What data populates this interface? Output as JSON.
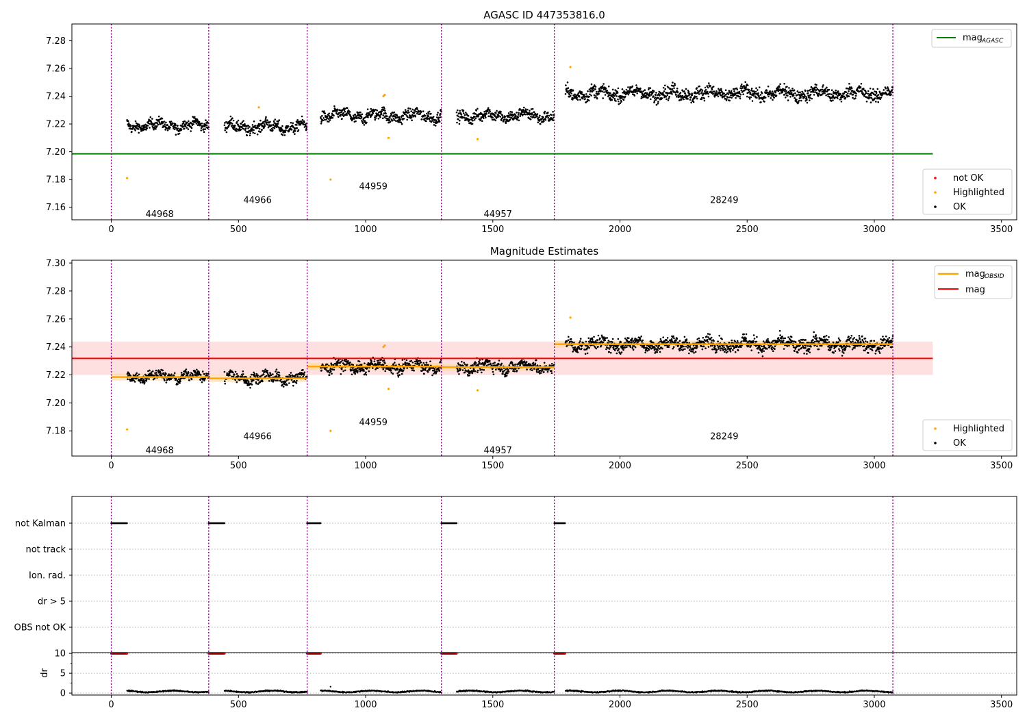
{
  "chart_data": [
    {
      "type": "scatter",
      "title": "AGASC ID 447353816.0",
      "xlabel": "",
      "ylabel": "",
      "xlim": [
        -155,
        3560
      ],
      "ylim": [
        7.151,
        7.292
      ],
      "x_ticks": [
        0,
        500,
        1000,
        1500,
        2000,
        2500,
        3000,
        3500
      ],
      "y_ticks": [
        7.16,
        7.18,
        7.2,
        7.22,
        7.24,
        7.26,
        7.28
      ],
      "observation_boundaries": [
        0,
        383,
        770,
        1298,
        1742,
        3073
      ],
      "obsid_labels": [
        {
          "text": "44968",
          "x": 190,
          "y": 7.155
        },
        {
          "text": "44966",
          "x": 575,
          "y": 7.165
        },
        {
          "text": "44959",
          "x": 1030,
          "y": 7.175
        },
        {
          "text": "44957",
          "x": 1520,
          "y": 7.155
        },
        {
          "text": "28249",
          "x": 2410,
          "y": 7.165
        }
      ],
      "segments": [
        {
          "x_start": 62,
          "x_end": 383,
          "mean": 7.219,
          "spread": 0.006
        },
        {
          "x_start": 445,
          "x_end": 770,
          "mean": 7.218,
          "spread": 0.007
        },
        {
          "x_start": 823,
          "x_end": 1298,
          "mean": 7.226,
          "spread": 0.007
        },
        {
          "x_start": 1358,
          "x_end": 1742,
          "mean": 7.226,
          "spread": 0.007
        },
        {
          "x_start": 1786,
          "x_end": 3073,
          "mean": 7.242,
          "spread": 0.008
        }
      ],
      "highlighted_points": [
        {
          "x": 62,
          "y": 7.181
        },
        {
          "x": 580,
          "y": 7.232
        },
        {
          "x": 862,
          "y": 7.18
        },
        {
          "x": 1070,
          "y": 7.24
        },
        {
          "x": 1075,
          "y": 7.241
        },
        {
          "x": 1090,
          "y": 7.21
        },
        {
          "x": 1440,
          "y": 7.209
        },
        {
          "x": 1805,
          "y": 7.261
        }
      ],
      "horizontal_lines": [
        {
          "name": "mag_AGASC",
          "y": 7.1985,
          "x_start": -155,
          "x_end": 3230,
          "color": "#008000"
        }
      ],
      "legends": [
        {
          "placement": "upper right",
          "entries": [
            {
              "name": "mag",
              "subscript": "AGASC",
              "color": "#008000",
              "kind": "line"
            }
          ]
        },
        {
          "placement": "lower right",
          "entries": [
            {
              "name": "not OK",
              "color": "#ff0000",
              "kind": "dot"
            },
            {
              "name": "Highlighted",
              "color": "#ffa500",
              "kind": "dot"
            },
            {
              "name": "OK",
              "color": "#000000",
              "kind": "dot"
            }
          ]
        }
      ]
    },
    {
      "type": "scatter",
      "title": "Magnitude Estimates",
      "xlabel": "",
      "ylabel": "",
      "xlim": [
        -155,
        3560
      ],
      "ylim": [
        7.162,
        7.302
      ],
      "x_ticks": [
        0,
        500,
        1000,
        1500,
        2000,
        2500,
        3000,
        3500
      ],
      "y_ticks": [
        7.18,
        7.2,
        7.22,
        7.24,
        7.26,
        7.28,
        7.3
      ],
      "observation_boundaries": [
        0,
        383,
        770,
        1298,
        1742,
        3073
      ],
      "obsid_labels": [
        {
          "text": "44968",
          "x": 190,
          "y": 7.166
        },
        {
          "text": "44966",
          "x": 575,
          "y": 7.176
        },
        {
          "text": "44959",
          "x": 1030,
          "y": 7.186
        },
        {
          "text": "44957",
          "x": 1520,
          "y": 7.166
        },
        {
          "text": "28249",
          "x": 2410,
          "y": 7.176
        }
      ],
      "segments": [
        {
          "x_start": 62,
          "x_end": 383,
          "mean": 7.219,
          "spread": 0.006
        },
        {
          "x_start": 445,
          "x_end": 770,
          "mean": 7.218,
          "spread": 0.007
        },
        {
          "x_start": 823,
          "x_end": 1298,
          "mean": 7.226,
          "spread": 0.007
        },
        {
          "x_start": 1358,
          "x_end": 1742,
          "mean": 7.226,
          "spread": 0.007
        },
        {
          "x_start": 1786,
          "x_end": 3073,
          "mean": 7.242,
          "spread": 0.008
        }
      ],
      "highlighted_points": [
        {
          "x": 62,
          "y": 7.181
        },
        {
          "x": 862,
          "y": 7.18
        },
        {
          "x": 1070,
          "y": 7.24
        },
        {
          "x": 1075,
          "y": 7.241
        },
        {
          "x": 1090,
          "y": 7.21
        },
        {
          "x": 1440,
          "y": 7.209
        },
        {
          "x": 1805,
          "y": 7.261
        }
      ],
      "mag_obsid": [
        {
          "x_start": 0,
          "x_end": 383,
          "y": 7.2185,
          "band": 0.0025
        },
        {
          "x_start": 383,
          "x_end": 770,
          "y": 7.2175,
          "band": 0.0025
        },
        {
          "x_start": 770,
          "x_end": 1298,
          "y": 7.226,
          "band": 0.0025
        },
        {
          "x_start": 1298,
          "x_end": 1742,
          "y": 7.2255,
          "band": 0.0025
        },
        {
          "x_start": 1742,
          "x_end": 3073,
          "y": 7.242,
          "band": 0.0025
        }
      ],
      "mag": {
        "y": 7.2318,
        "band": [
          7.22,
          7.2438
        ],
        "x_start": -155,
        "x_end": 3230
      },
      "legends": [
        {
          "placement": "upper right",
          "entries": [
            {
              "name": "mag",
              "subscript": "OBSID",
              "color": "#ffa500",
              "kind": "line"
            },
            {
              "name": "mag",
              "subscript": "",
              "color": "#ff0000",
              "kind": "line"
            }
          ]
        },
        {
          "placement": "lower right",
          "entries": [
            {
              "name": "Highlighted",
              "color": "#ffa500",
              "kind": "dot"
            },
            {
              "name": "OK",
              "color": "#000000",
              "kind": "dot"
            }
          ]
        }
      ]
    },
    {
      "type": "scatter",
      "title": "",
      "xlabel": "",
      "ylabel": "",
      "xlim": [
        -155,
        3560
      ],
      "categories": [
        "not Kalman",
        "not track",
        "Ion. rad.",
        "dr > 5",
        "OBS not OK"
      ],
      "flags": [
        {
          "category": "not Kalman",
          "ranges": [
            [
              0,
              62
            ],
            [
              383,
              445
            ],
            [
              770,
              823
            ],
            [
              1298,
              1358
            ],
            [
              1742,
              1786
            ]
          ]
        }
      ],
      "observation_boundaries": [
        0,
        383,
        770,
        1298,
        1742,
        3073
      ]
    },
    {
      "type": "scatter",
      "title": "",
      "xlabel": "",
      "ylabel": "dr",
      "xlim": [
        -155,
        3560
      ],
      "ylim": [
        -0.5,
        10.2
      ],
      "x_ticks": [
        0,
        500,
        1000,
        1500,
        2000,
        2500,
        3000,
        3500
      ],
      "y_ticks": [
        0,
        5,
        10
      ],
      "observation_boundaries": [
        0,
        383,
        770,
        1298,
        1742,
        3073
      ],
      "dr_ten_ranges": [
        [
          0,
          62
        ],
        [
          383,
          445
        ],
        [
          770,
          823
        ],
        [
          1298,
          1358
        ],
        [
          1742,
          1786
        ]
      ],
      "dr_baseline": {
        "mean": 0.4,
        "spread": 0.25
      },
      "dr_outliers": [
        {
          "x": 862,
          "y": 1.6
        }
      ]
    }
  ],
  "colors": {
    "ok": "#000000",
    "highlighted": "#ffa500",
    "not_ok": "#ff0000",
    "boundary": "#800080",
    "agasc_line": "#008000",
    "obsid_line": "#ffa500",
    "mag_line": "#ff0000"
  }
}
